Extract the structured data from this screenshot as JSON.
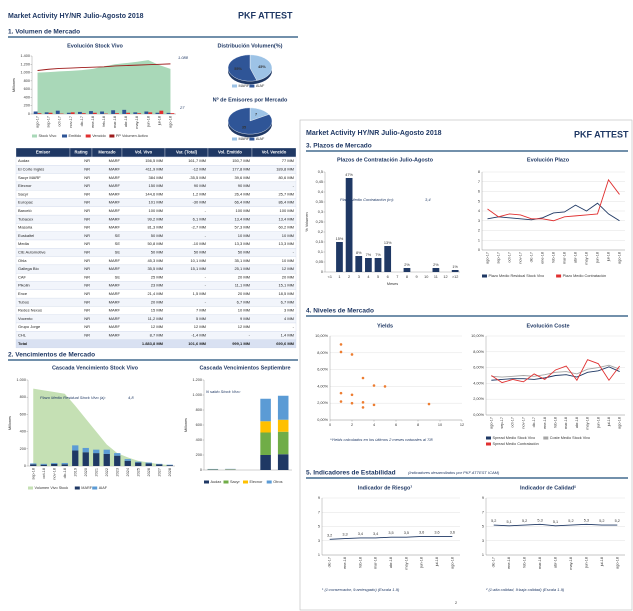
{
  "pages": [
    {
      "title": "Market Activity HY/NR Julio-Agosto 2018",
      "logo": "PKF ATTEST",
      "sections": [
        "1. Volumen de Mercado",
        "2. Vencimientos de Mercado"
      ]
    },
    {
      "title": "Market Activity HY/NR Julio-Agosto 2018",
      "logo": "PKF ATTEST",
      "sections": [
        "3. Plazos de Mercado",
        "4. Niveles de Mercado",
        "5. Indicadores de Estabilidad"
      ],
      "section_note": "(Indicadores desarrollados por PKF ATTEST ICAM)",
      "page_number": "2"
    }
  ],
  "charts": [
    {
      "type": "combo",
      "title": "Evolución Stock Vivo",
      "ylabel": "Millones",
      "categories": [
        "ago-17",
        "sep-17",
        "oct-17",
        "nov-17",
        "dic-17",
        "ene-18",
        "feb-18",
        "mar-18",
        "abr-18",
        "may-18",
        "jun-18",
        "jul-18",
        "ago-18"
      ],
      "series": [
        {
          "name": "Stock Vivo",
          "kind": "area",
          "color": "#a9d8b8",
          "values": [
            1000,
            1010,
            1030,
            1040,
            1060,
            1090,
            1150,
            1200,
            1230,
            1260,
            1300,
            1180,
            1088
          ]
        },
        {
          "name": "Emitido",
          "kind": "bar",
          "color": "#2f5597",
          "values": [
            60,
            40,
            80,
            30,
            50,
            70,
            60,
            90,
            100,
            40,
            60,
            30,
            27
          ]
        },
        {
          "name": "Vencido",
          "kind": "bar",
          "color": "#e03030",
          "values": [
            20,
            30,
            10,
            40,
            20,
            30,
            10,
            20,
            30,
            20,
            40,
            80,
            20
          ]
        },
        {
          "name": "PP Volumen Activo",
          "kind": "line",
          "color": "#9e1b1b",
          "values": [
            1050,
            1080,
            1100,
            1110,
            1120,
            1130,
            1140,
            1160,
            1170,
            1180,
            1190,
            1200,
            1210
          ]
        }
      ],
      "ylim": [
        0,
        1400
      ],
      "yticks": [
        0,
        200,
        400,
        600,
        800,
        {
          "value": 1000,
          "label": "1.000"
        },
        {
          "value": 1200,
          "label": "1.200"
        },
        {
          "value": 1400,
          "label": "1.400"
        }
      ],
      "annotations": [
        "1.088",
        "27"
      ],
      "grid": false
    },
    {
      "type": "pie",
      "title": "Distribución Volumen(%)",
      "categories": [
        "MARF",
        "AIAF"
      ],
      "values": [
        45,
        55
      ],
      "value_labels": [
        "45%",
        "55%"
      ],
      "colors": [
        "#9dc3e6",
        "#2f5597"
      ]
    },
    {
      "type": "pie",
      "title": "Nº de Emisores por Mercado",
      "categories": [
        "MARF",
        "AIAF"
      ],
      "values": [
        7,
        35
      ],
      "colors": [
        "#9dc3e6",
        "#2f5597"
      ]
    },
    {
      "type": "combo",
      "title": "Cascada Vencimiento Stock Vivo",
      "ylabel": "Millones",
      "stacked": true,
      "categories": [
        "sep-18",
        "oct-18",
        "nov-18",
        "dic-18",
        "2019",
        "2020",
        "2021",
        "2022",
        "2023",
        "2024",
        "2025",
        "2026",
        "2027",
        "2028"
      ],
      "series": [
        {
          "name": "Volumen Vivo Stock",
          "kind": "area",
          "color": "#c5e0b4",
          "values": [
            900,
            880,
            860,
            840,
            700,
            550,
            400,
            250,
            150,
            100,
            60,
            40,
            20,
            10
          ]
        },
        {
          "name": "MARF",
          "kind": "bar",
          "color": "#1f3864",
          "values": [
            20,
            15,
            25,
            20,
            180,
            160,
            150,
            140,
            120,
            60,
            40,
            30,
            20,
            10
          ]
        },
        {
          "name": "AIAF",
          "kind": "bar",
          "color": "#5b9bd5",
          "values": [
            10,
            10,
            10,
            15,
            60,
            50,
            40,
            50,
            30,
            20,
            10,
            10,
            5,
            5
          ]
        }
      ],
      "ylim": [
        0,
        1000
      ],
      "yticks": [
        0,
        200,
        400,
        600,
        800,
        {
          "value": 1000,
          "label": "1.000"
        }
      ],
      "annotations": [
        "Plazo Medio Residual Stock Vivo (a):",
        "4,8"
      ],
      "grid": false
    },
    {
      "type": "bar",
      "title": "Cascada Vencimientos Septiembre",
      "ylabel": "Millones",
      "stacked": true,
      "categories": [
        null,
        null,
        null,
        null,
        null
      ],
      "series": [
        {
          "name": "Audax",
          "color": "#1f3864",
          "values": [
            5,
            0,
            0,
            200,
            210
          ]
        },
        {
          "name": "Sacyr",
          "color": "#70ad47",
          "values": [
            3,
            0,
            0,
            300,
            300
          ]
        },
        {
          "name": "Elecnor",
          "color": "#ffc000",
          "values": [
            2,
            5,
            0,
            150,
            160
          ]
        },
        {
          "name": "Otros",
          "color": "#5b9bd5",
          "values": [
            4,
            10,
            0,
            300,
            320
          ]
        }
      ],
      "ylim": [
        0,
        1200
      ],
      "yticks": [
        0,
        200,
        400,
        600,
        800,
        {
          "value": 1000,
          "label": "1.000"
        },
        {
          "value": 1200,
          "label": "1.200"
        }
      ],
      "annotations": [
        "N saldo Stock Vivo:"
      ],
      "grid": false
    },
    {
      "type": "bar",
      "title": "Plazos de Contratación Julio-Agosto",
      "xlabel": "Meses",
      "ylabel": "% Volumen",
      "categories": [
        "<1",
        "1",
        "2",
        "3",
        "4",
        "5",
        "6",
        "7",
        "8",
        "9",
        "10",
        "11",
        "12",
        ">12"
      ],
      "series": [
        {
          "color": "#1f3864",
          "values": [
            0,
            0.15,
            0.47,
            0.08,
            0.07,
            0.07,
            0.13,
            0,
            0.02,
            0,
            0,
            0.02,
            0,
            0.01
          ],
          "value_labels": [
            null,
            "15%",
            "47%",
            "8%",
            "7%",
            "7%",
            "13%",
            null,
            "2%",
            null,
            null,
            "2%",
            null,
            "1%"
          ]
        }
      ],
      "ylim": [
        0,
        0.5
      ],
      "yticks": [
        0,
        {
          "value": 0.05,
          "label": "0,05"
        },
        {
          "value": 0.1,
          "label": "0,1"
        },
        {
          "value": 0.15,
          "label": "0,15"
        },
        {
          "value": 0.2,
          "label": "0,2"
        },
        {
          "value": 0.25,
          "label": "0,25"
        },
        {
          "value": 0.3,
          "label": "0,3"
        },
        {
          "value": 0.35,
          "label": "0,35"
        },
        {
          "value": 0.4,
          "label": "0,4"
        },
        {
          "value": 0.45,
          "label": "0,45"
        },
        {
          "value": 0.5,
          "label": "0,5"
        }
      ],
      "annotations": [
        "Plazo Medio Contratación (m):",
        "3,4"
      ],
      "grid": false
    },
    {
      "type": "line",
      "title": "Evolución Plazo",
      "categories": [
        "ago-17",
        "sep-17",
        "oct-17",
        "nov-17",
        "dic-17",
        "ene-18",
        "feb-18",
        "mar-18",
        "abr-18",
        "may-18",
        "jun-18",
        "jul-18",
        "ago-18"
      ],
      "series": [
        {
          "name": "Plazo Medio Residual Stock Vivo",
          "color": "#1f3864",
          "values": [
            3.2,
            3.4,
            3.3,
            3.2,
            3.1,
            3.3,
            3.8,
            3.9,
            4.6,
            4.0,
            4.8,
            3.7,
            3.0
          ]
        },
        {
          "name": "Plazo Medio Contratación",
          "color": "#e03030",
          "values": [
            4.2,
            3.4,
            3.7,
            3.6,
            3.2,
            3.2,
            3.0,
            3.4,
            3.5,
            3.6,
            3.7,
            7.2,
            5.7
          ]
        }
      ],
      "ylim": [
        0,
        8
      ],
      "yticks": [
        0,
        1,
        2,
        3,
        4,
        5,
        6,
        7,
        8
      ],
      "grid": true
    },
    {
      "type": "scatter",
      "title": "Yields",
      "series": [
        {
          "color": "#ed7d31",
          "x": [
            1,
            1,
            2,
            3,
            4,
            5,
            1,
            2,
            1,
            3,
            2,
            4,
            3,
            9
          ],
          "values": [
            0.09,
            0.081,
            0.078,
            0.05,
            0.041,
            0.04,
            0.032,
            0.03,
            0.022,
            0.021,
            0.02,
            0.018,
            0.015,
            0.019
          ]
        }
      ],
      "xlim": [
        0,
        12
      ],
      "xticks": [
        0,
        2,
        4,
        6,
        8,
        10,
        12
      ],
      "ylim": [
        0,
        0.1
      ],
      "yticks": [
        {
          "value": 0,
          "label": "0,00%"
        },
        {
          "value": 0.02,
          "label": "2,00%"
        },
        {
          "value": 0.04,
          "label": "4,00%"
        },
        {
          "value": 0.06,
          "label": "6,00%"
        },
        {
          "value": 0.08,
          "label": "8,00%"
        },
        {
          "value": 0.1,
          "label": "10,00%"
        }
      ],
      "annotations": [
        "*Yields calculados en los últimos 2 meses naturales al 7/8"
      ],
      "grid": true
    },
    {
      "type": "line",
      "title": "Evolución Coste",
      "categories": [
        "ago-17",
        "sep-17",
        "oct-17",
        "nov-17",
        "dic-17",
        "ene-18",
        "feb-18",
        "mar-18",
        "abr-18",
        "may-18",
        "jun-18",
        "jul-18",
        "ago-18"
      ],
      "series": [
        {
          "name": "Spread Medio Stock Vivo",
          "color": "#1f3864",
          "values": [
            0.044,
            0.045,
            0.046,
            0.046,
            0.045,
            0.047,
            0.05,
            0.051,
            0.048,
            0.054,
            0.056,
            0.061,
            0.055
          ]
        },
        {
          "name": "Coste Medio Stock Vivo",
          "color": "#a5a5a5",
          "values": [
            0.049,
            0.048,
            0.049,
            0.05,
            0.049,
            0.051,
            0.054,
            0.055,
            0.052,
            0.058,
            0.06,
            0.063,
            0.058
          ]
        },
        {
          "name": "Spread Medio Contratación",
          "color": "#e03030",
          "values": [
            0.05,
            0.041,
            0.045,
            0.042,
            0.052,
            0.045,
            0.057,
            0.062,
            0.044,
            0.07,
            0.065,
            0.044,
            0.062
          ]
        }
      ],
      "ylim": [
        0,
        0.1
      ],
      "yticks": [
        {
          "value": 0,
          "label": "0,00%"
        },
        {
          "value": 0.02,
          "label": "2,00%"
        },
        {
          "value": 0.04,
          "label": "4,00%"
        },
        {
          "value": 0.06,
          "label": "6,00%"
        },
        {
          "value": 0.08,
          "label": "8,00%"
        },
        {
          "value": 0.1,
          "label": "10,00%"
        }
      ],
      "grid": true
    },
    {
      "type": "line",
      "title": "Indicador de Riesgo¹",
      "categories": [
        "dic-17",
        "ene-18",
        "feb-18",
        "mar-18",
        "abr-18",
        "may-18",
        "jun-18",
        "jul-18",
        "ago-18"
      ],
      "series": [
        {
          "color": "#1f3864",
          "values": [
            3.2,
            3.3,
            3.4,
            3.4,
            3.5,
            3.5,
            3.6,
            3.6,
            3.6
          ],
          "value_labels": [
            "3,2",
            "3,3",
            "3,4",
            "3,4",
            "3,5",
            "3,5",
            "3,6",
            "3,6",
            "3,6"
          ]
        }
      ],
      "ylim": [
        1,
        9
      ],
      "yticks": [
        1,
        3,
        5,
        7,
        9
      ],
      "annotations": [
        "¹ (1:conservador, 9:arriesgado) (Escala 1-9)"
      ],
      "grid": true
    },
    {
      "type": "line",
      "title": "Indicador de Calidad²",
      "categories": [
        "dic-17",
        "ene-18",
        "feb-18",
        "mar-18",
        "abr-18",
        "may-18",
        "jun-18",
        "jul-18",
        "ago-18"
      ],
      "series": [
        {
          "color": "#1f3864",
          "values": [
            5.2,
            5.1,
            5.2,
            5.3,
            5.1,
            5.2,
            5.3,
            5.2,
            5.2
          ],
          "value_labels": [
            "5,2",
            "5,1",
            "5,2",
            "5,3",
            "5,1",
            "5,2",
            "5,3",
            "5,2",
            "5,2"
          ]
        }
      ],
      "ylim": [
        1,
        9
      ],
      "yticks": [
        1,
        3,
        5,
        7,
        9
      ],
      "annotations": [
        "² (1:alta calidad, 9:baja calidad) (Escala 1-9)"
      ],
      "grid": true
    }
  ],
  "table": {
    "header": [
      "Emisor",
      "Rating",
      "Mercado",
      "Vol. Vivo",
      "Var. (Total)",
      "Vol. Emitido",
      "Vol. Vencido"
    ],
    "rows": [
      [
        "Audax",
        "NR",
        "MARF",
        "156,5 MM",
        "161,7 MM",
        "150,7 MM",
        "77 MM"
      ],
      [
        "El Corte Inglés",
        "NR",
        "MARF",
        "411,9 MM",
        "-12 MM",
        "177,8 MM",
        "189,8 MM"
      ],
      [
        "Sacyr MARF",
        "NR",
        "MARF",
        "384 MM",
        "-35,5 MM",
        "39,6 MM",
        "80,6 MM"
      ],
      [
        "Elecnor",
        "NR",
        "MARF",
        "150 MM",
        "90 MM",
        "90 MM",
        "-"
      ],
      [
        "Sacyr",
        "NR",
        "MARF",
        "144,6 MM",
        "1,2 MM",
        "26,4 MM",
        "25,7 MM"
      ],
      [
        "Europac",
        "NR",
        "MARF",
        "101 MM",
        "-30 MM",
        "66,4 MM",
        "86,4 MM"
      ],
      [
        "Barceló",
        "NR",
        "MARF",
        "100 MM",
        "-",
        "100 MM",
        "100 MM"
      ],
      [
        "Tubacex",
        "NR",
        "MARF",
        "99,2 MM",
        "6,1 MM",
        "13,4 MM",
        "13,4 MM"
      ],
      [
        "Masaria",
        "NR",
        "MARF",
        "81,3 MM",
        "-2,7 MM",
        "57,3 MM",
        "60,2 MM"
      ],
      [
        "Euskaltel",
        "NR",
        "SE",
        "50 MM",
        "-",
        "10 MM",
        "10 MM"
      ],
      [
        "Media",
        "NR",
        "SE",
        "50,8 MM",
        "-10 MM",
        "13,3 MM",
        "13,3 MM"
      ],
      [
        "CIE Automotive",
        "NR",
        "SE",
        "50 MM",
        "50 MM",
        "50 MM",
        "-"
      ],
      [
        "Ohla",
        "NR",
        "MARF",
        "45,3 MM",
        "10,1 MM",
        "35,1 MM",
        "10 MM"
      ],
      [
        "Gallega Bio",
        "NR",
        "MARF",
        "35,5 MM",
        "15,1 MM",
        "25,1 MM",
        "12 MM"
      ],
      [
        "CAF",
        "NR",
        "SE",
        "25 MM",
        "-",
        "20 MM",
        "20 MM"
      ],
      [
        "Pikolin",
        "NR",
        "MARF",
        "23 MM",
        "-",
        "11,1 MM",
        "15,1 MM"
      ],
      [
        "Ence",
        "NR",
        "MARF",
        "21,4 MM",
        "1,5 MM",
        "20 MM",
        "18,5 MM"
      ],
      [
        "Tubos",
        "NR",
        "MARF",
        "20 MM",
        "-",
        "6,7 MM",
        "6,7 MM"
      ],
      [
        "Redes Nexus",
        "NR",
        "MARF",
        "15 MM",
        "7 MM",
        "10 MM",
        "3 MM"
      ],
      [
        "Vocento",
        "NR",
        "MARF",
        "11,2 MM",
        "5 MM",
        "9 MM",
        "4 MM"
      ],
      [
        "Grupo Jorge",
        "NR",
        "MARF",
        "12 MM",
        "12 MM",
        "12 MM",
        "-"
      ],
      [
        "CHL",
        "NR",
        "MARF",
        "8,7 MM",
        "-1,4 MM",
        "-",
        "1,4 MM"
      ],
      [
        "Total",
        null,
        null,
        "1.883,8 MM",
        "101,6 MM",
        "999,1 MM",
        "690,6 MM"
      ]
    ]
  }
}
